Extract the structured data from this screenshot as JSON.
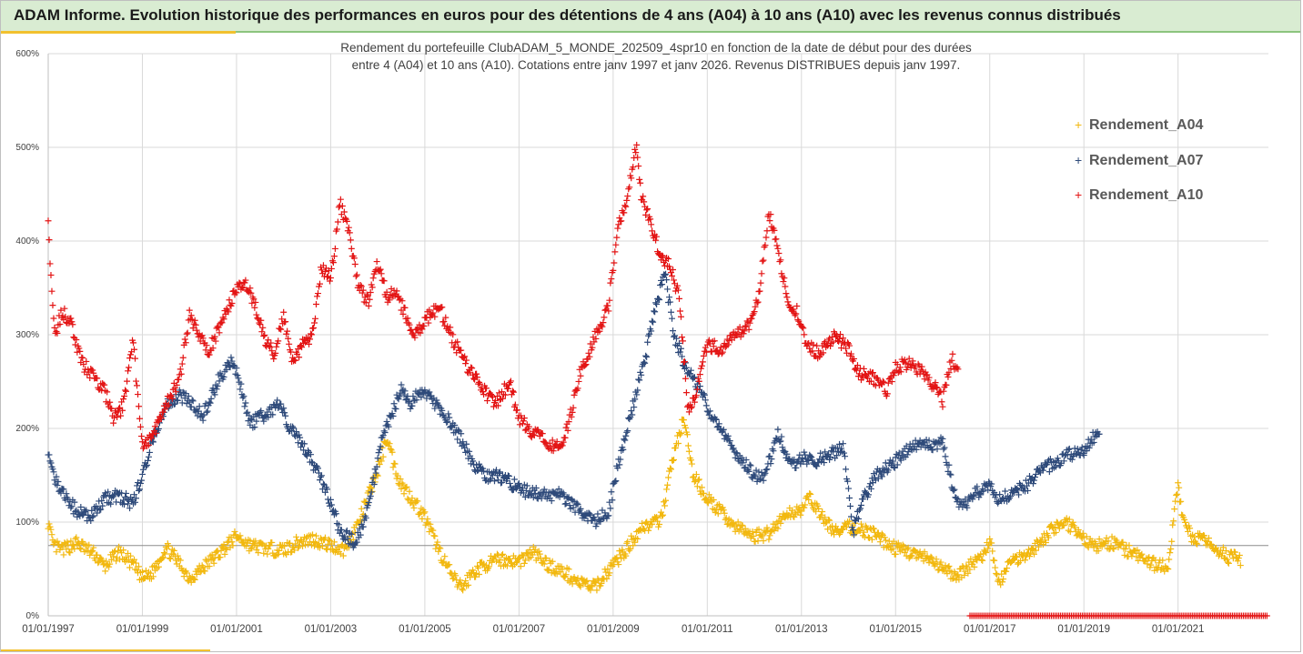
{
  "window": {
    "title": "ADAM Informe. Evolution historique des performances en euros pour des détentions de 4 ans (A04) à 10 ans (A10) avec les revenus connus distribués"
  },
  "colors": {
    "banner": "#d9ecd2",
    "gold_accent": "#f2c12e",
    "A04": "#f2b80f",
    "A07": "#2e4a7a",
    "A10": "#e31414"
  },
  "chart_data": {
    "type": "scatter",
    "subtitle_lines": [
      "Rendement du portefeuille ClubADAM_5_MONDE_202509_4spr10  en fonction de la date de début pour des durées",
      "entre 4 (A04) et 10 ans (A10). Cotations entre janv 1997 et janv 2026. Revenus DISTRIBUES depuis janv 1997."
    ],
    "x_axis": {
      "start": "01/01/1997",
      "end": "01/12/2022",
      "tick_labels": [
        "01/01/1997",
        "01/01/1999",
        "01/01/2001",
        "01/01/2003",
        "01/01/2005",
        "01/01/2007",
        "01/01/2009",
        "01/01/2011",
        "01/01/2013",
        "01/01/2015",
        "01/01/2017",
        "01/01/2019",
        "01/01/2021"
      ]
    },
    "y_axis": {
      "min": 0,
      "max": 600,
      "step": 100,
      "unit": "%",
      "tick_labels": [
        "0%",
        "100%",
        "200%",
        "300%",
        "400%",
        "500%",
        "600%"
      ],
      "reference_line": 75
    },
    "grid": true,
    "legend_position": "top-right",
    "series": [
      {
        "name": "Rendement_A04",
        "marker": "+",
        "end": "2022.33",
        "values_by_year": [
          [
            1997.0,
            100
          ],
          [
            1997.1,
            75
          ],
          [
            1997.3,
            70
          ],
          [
            1997.6,
            78
          ],
          [
            1998.0,
            65
          ],
          [
            1998.2,
            52
          ],
          [
            1998.5,
            68
          ],
          [
            1998.8,
            55
          ],
          [
            1999.0,
            40
          ],
          [
            1999.2,
            45
          ],
          [
            1999.5,
            73
          ],
          [
            1999.8,
            55
          ],
          [
            2000.0,
            40
          ],
          [
            2000.3,
            52
          ],
          [
            2000.6,
            65
          ],
          [
            2001.0,
            85
          ],
          [
            2001.3,
            75
          ],
          [
            2001.6,
            72
          ],
          [
            2002.0,
            70
          ],
          [
            2002.3,
            78
          ],
          [
            2002.6,
            82
          ],
          [
            2003.0,
            75
          ],
          [
            2003.3,
            70
          ],
          [
            2003.6,
            100
          ],
          [
            2004.0,
            155
          ],
          [
            2004.2,
            192
          ],
          [
            2004.35,
            160
          ],
          [
            2004.5,
            140
          ],
          [
            2004.8,
            120
          ],
          [
            2005.0,
            105
          ],
          [
            2005.3,
            70
          ],
          [
            2005.6,
            40
          ],
          [
            2005.8,
            30
          ],
          [
            2006.0,
            45
          ],
          [
            2006.3,
            55
          ],
          [
            2006.6,
            60
          ],
          [
            2007.0,
            58
          ],
          [
            2007.3,
            68
          ],
          [
            2007.6,
            55
          ],
          [
            2008.0,
            45
          ],
          [
            2008.3,
            35
          ],
          [
            2008.6,
            30
          ],
          [
            2008.8,
            42
          ],
          [
            2009.0,
            55
          ],
          [
            2009.3,
            72
          ],
          [
            2009.6,
            95
          ],
          [
            2010.0,
            100
          ],
          [
            2010.3,
            175
          ],
          [
            2010.5,
            210
          ],
          [
            2010.7,
            150
          ],
          [
            2011.0,
            125
          ],
          [
            2011.3,
            110
          ],
          [
            2011.6,
            95
          ],
          [
            2012.0,
            85
          ],
          [
            2012.3,
            88
          ],
          [
            2012.6,
            105
          ],
          [
            2013.0,
            115
          ],
          [
            2013.2,
            125
          ],
          [
            2013.5,
            100
          ],
          [
            2013.8,
            88
          ],
          [
            2014.0,
            95
          ],
          [
            2014.3,
            92
          ],
          [
            2014.6,
            85
          ],
          [
            2014.8,
            78
          ],
          [
            2015.0,
            72
          ],
          [
            2015.3,
            68
          ],
          [
            2015.6,
            62
          ],
          [
            2016.0,
            50
          ],
          [
            2016.3,
            42
          ],
          [
            2016.6,
            55
          ],
          [
            2016.9,
            65
          ],
          [
            2017.0,
            80
          ],
          [
            2017.2,
            35
          ],
          [
            2017.4,
            55
          ],
          [
            2017.6,
            62
          ],
          [
            2017.9,
            70
          ],
          [
            2018.2,
            85
          ],
          [
            2018.5,
            100
          ],
          [
            2018.8,
            95
          ],
          [
            2019.0,
            80
          ],
          [
            2019.3,
            75
          ],
          [
            2019.6,
            78
          ],
          [
            2019.9,
            70
          ],
          [
            2020.2,
            62
          ],
          [
            2020.5,
            55
          ],
          [
            2020.8,
            52
          ],
          [
            2021.0,
            145
          ],
          [
            2021.1,
            100
          ],
          [
            2021.3,
            85
          ],
          [
            2021.6,
            78
          ],
          [
            2021.9,
            70
          ],
          [
            2022.1,
            62
          ],
          [
            2022.33,
            60
          ]
        ]
      },
      {
        "name": "Rendement_A07",
        "marker": "+",
        "end": "2019.33",
        "values_by_year": [
          [
            1997.0,
            175
          ],
          [
            1997.1,
            150
          ],
          [
            1997.3,
            130
          ],
          [
            1997.6,
            112
          ],
          [
            1997.9,
            105
          ],
          [
            1998.2,
            125
          ],
          [
            1998.5,
            128
          ],
          [
            1998.8,
            120
          ],
          [
            1999.0,
            150
          ],
          [
            1999.2,
            185
          ],
          [
            1999.5,
            225
          ],
          [
            1999.8,
            235
          ],
          [
            2000.0,
            228
          ],
          [
            2000.3,
            215
          ],
          [
            2000.6,
            250
          ],
          [
            2000.9,
            275
          ],
          [
            2001.0,
            260
          ],
          [
            2001.3,
            205
          ],
          [
            2001.6,
            215
          ],
          [
            2001.9,
            225
          ],
          [
            2002.2,
            195
          ],
          [
            2002.5,
            175
          ],
          [
            2002.8,
            145
          ],
          [
            2003.0,
            120
          ],
          [
            2003.2,
            90
          ],
          [
            2003.5,
            78
          ],
          [
            2003.7,
            100
          ],
          [
            2003.9,
            140
          ],
          [
            2004.1,
            190
          ],
          [
            2004.3,
            215
          ],
          [
            2004.5,
            245
          ],
          [
            2004.7,
            225
          ],
          [
            2004.9,
            240
          ],
          [
            2005.2,
            228
          ],
          [
            2005.5,
            210
          ],
          [
            2005.8,
            185
          ],
          [
            2006.0,
            165
          ],
          [
            2006.3,
            150
          ],
          [
            2006.6,
            148
          ],
          [
            2006.9,
            140
          ],
          [
            2007.2,
            132
          ],
          [
            2007.5,
            128
          ],
          [
            2007.8,
            130
          ],
          [
            2008.0,
            125
          ],
          [
            2008.3,
            110
          ],
          [
            2008.6,
            100
          ],
          [
            2008.9,
            110
          ],
          [
            2009.1,
            160
          ],
          [
            2009.3,
            200
          ],
          [
            2009.5,
            240
          ],
          [
            2009.7,
            280
          ],
          [
            2009.9,
            330
          ],
          [
            2010.1,
            365
          ],
          [
            2010.3,
            300
          ],
          [
            2010.5,
            270
          ],
          [
            2010.8,
            245
          ],
          [
            2011.0,
            225
          ],
          [
            2011.3,
            195
          ],
          [
            2011.6,
            175
          ],
          [
            2011.9,
            155
          ],
          [
            2012.2,
            145
          ],
          [
            2012.5,
            195
          ],
          [
            2012.8,
            160
          ],
          [
            2013.0,
            170
          ],
          [
            2013.3,
            165
          ],
          [
            2013.6,
            172
          ],
          [
            2013.9,
            178
          ],
          [
            2014.1,
            90
          ],
          [
            2014.3,
            125
          ],
          [
            2014.6,
            150
          ],
          [
            2014.9,
            160
          ],
          [
            2015.2,
            175
          ],
          [
            2015.5,
            185
          ],
          [
            2015.8,
            180
          ],
          [
            2016.0,
            185
          ],
          [
            2016.2,
            140
          ],
          [
            2016.4,
            115
          ],
          [
            2016.6,
            125
          ],
          [
            2016.8,
            135
          ],
          [
            2017.0,
            140
          ],
          [
            2017.2,
            125
          ],
          [
            2017.5,
            130
          ],
          [
            2017.8,
            140
          ],
          [
            2018.1,
            155
          ],
          [
            2018.4,
            165
          ],
          [
            2018.7,
            172
          ],
          [
            2019.0,
            178
          ],
          [
            2019.2,
            190
          ],
          [
            2019.33,
            195
          ]
        ]
      },
      {
        "name": "Rendement_A10",
        "marker": "+",
        "end": "2016.33",
        "values_by_year": [
          [
            1997.0,
            415
          ],
          [
            1997.05,
            370
          ],
          [
            1997.15,
            300
          ],
          [
            1997.3,
            325
          ],
          [
            1997.5,
            310
          ],
          [
            1997.7,
            270
          ],
          [
            1997.9,
            260
          ],
          [
            1998.2,
            240
          ],
          [
            1998.4,
            210
          ],
          [
            1998.6,
            225
          ],
          [
            1998.8,
            295
          ],
          [
            1999.0,
            180
          ],
          [
            1999.2,
            190
          ],
          [
            1999.5,
            225
          ],
          [
            1999.8,
            255
          ],
          [
            2000.0,
            320
          ],
          [
            2000.2,
            300
          ],
          [
            2000.4,
            280
          ],
          [
            2000.6,
            305
          ],
          [
            2000.8,
            325
          ],
          [
            2001.0,
            350
          ],
          [
            2001.2,
            355
          ],
          [
            2001.4,
            330
          ],
          [
            2001.6,
            295
          ],
          [
            2001.8,
            280
          ],
          [
            2002.0,
            320
          ],
          [
            2002.2,
            270
          ],
          [
            2002.4,
            290
          ],
          [
            2002.6,
            295
          ],
          [
            2002.8,
            370
          ],
          [
            2003.0,
            360
          ],
          [
            2003.2,
            440
          ],
          [
            2003.4,
            405
          ],
          [
            2003.6,
            350
          ],
          [
            2003.8,
            335
          ],
          [
            2004.0,
            375
          ],
          [
            2004.2,
            340
          ],
          [
            2004.4,
            345
          ],
          [
            2004.6,
            320
          ],
          [
            2004.8,
            300
          ],
          [
            2005.0,
            315
          ],
          [
            2005.3,
            330
          ],
          [
            2005.6,
            295
          ],
          [
            2005.9,
            265
          ],
          [
            2006.2,
            245
          ],
          [
            2006.5,
            225
          ],
          [
            2006.8,
            250
          ],
          [
            2007.0,
            210
          ],
          [
            2007.3,
            195
          ],
          [
            2007.6,
            185
          ],
          [
            2007.9,
            180
          ],
          [
            2008.1,
            215
          ],
          [
            2008.3,
            260
          ],
          [
            2008.6,
            295
          ],
          [
            2008.9,
            330
          ],
          [
            2009.1,
            420
          ],
          [
            2009.3,
            440
          ],
          [
            2009.4,
            480
          ],
          [
            2009.5,
            505
          ],
          [
            2009.6,
            445
          ],
          [
            2009.8,
            420
          ],
          [
            2010.0,
            385
          ],
          [
            2010.2,
            375
          ],
          [
            2010.4,
            340
          ],
          [
            2010.6,
            215
          ],
          [
            2010.8,
            245
          ],
          [
            2011.0,
            290
          ],
          [
            2011.3,
            285
          ],
          [
            2011.6,
            300
          ],
          [
            2011.9,
            310
          ],
          [
            2012.1,
            340
          ],
          [
            2012.3,
            430
          ],
          [
            2012.5,
            395
          ],
          [
            2012.7,
            335
          ],
          [
            2012.9,
            325
          ],
          [
            2013.1,
            290
          ],
          [
            2013.4,
            280
          ],
          [
            2013.7,
            300
          ],
          [
            2014.0,
            285
          ],
          [
            2014.2,
            260
          ],
          [
            2014.5,
            255
          ],
          [
            2014.8,
            240
          ],
          [
            2015.0,
            265
          ],
          [
            2015.3,
            270
          ],
          [
            2015.6,
            260
          ],
          [
            2015.9,
            240
          ],
          [
            2016.0,
            230
          ],
          [
            2016.2,
            275
          ],
          [
            2016.33,
            260
          ]
        ]
      }
    ]
  }
}
